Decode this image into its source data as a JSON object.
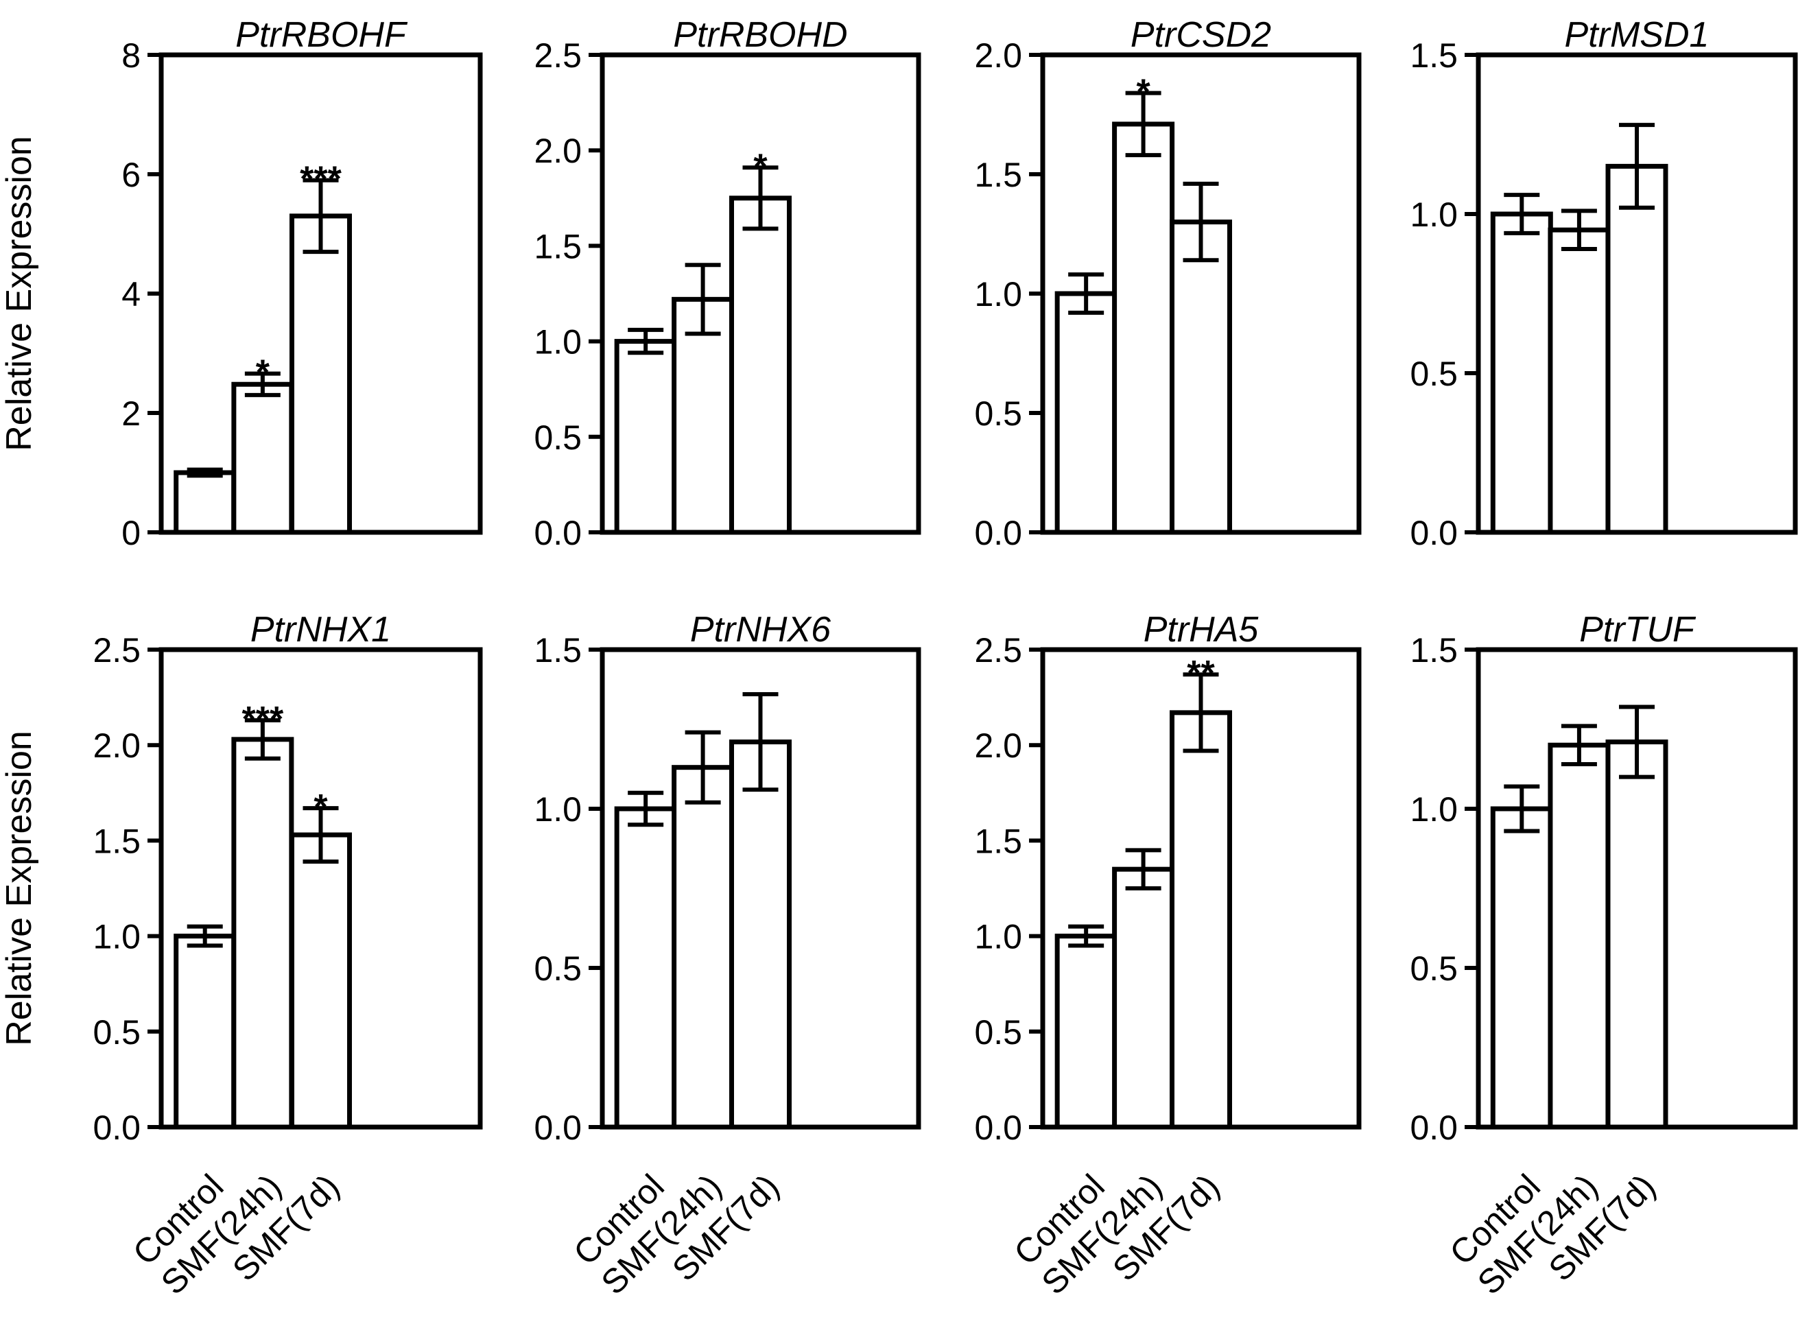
{
  "figure_colors": {
    "axis": "#000000",
    "bar_fill": "#ffffff",
    "bar_stroke": "#000000"
  },
  "chart_data": [
    {
      "type": "bar",
      "title": "PtrRBOHF",
      "ylabel": "Relative Expression",
      "ylim": [
        0,
        8
      ],
      "yticks": [
        {
          "v": 0,
          "label": "0"
        },
        {
          "v": 2,
          "label": "2"
        },
        {
          "v": 4,
          "label": "4"
        },
        {
          "v": 6,
          "label": "6"
        },
        {
          "v": 8,
          "label": "8"
        }
      ],
      "categories": [
        "Control",
        "SMF(24h)",
        "SMF(7d)"
      ],
      "values": [
        1.0,
        2.48,
        5.3
      ],
      "errors": [
        0.05,
        0.18,
        0.6
      ],
      "significance": [
        "",
        "*",
        "***"
      ]
    },
    {
      "type": "bar",
      "title": "PtrRBOHD",
      "ylabel": "",
      "ylim": [
        0,
        2.5
      ],
      "yticks": [
        {
          "v": 0,
          "label": "0.0"
        },
        {
          "v": 0.5,
          "label": "0.5"
        },
        {
          "v": 1,
          "label": "1.0"
        },
        {
          "v": 1.5,
          "label": "1.5"
        },
        {
          "v": 2,
          "label": "2.0"
        },
        {
          "v": 2.5,
          "label": "2.5"
        }
      ],
      "categories": [
        "Control",
        "SMF(24h)",
        "SMF(7d)"
      ],
      "values": [
        1.0,
        1.22,
        1.75
      ],
      "errors": [
        0.06,
        0.18,
        0.16
      ],
      "significance": [
        "",
        "",
        "*"
      ]
    },
    {
      "type": "bar",
      "title": "PtrCSD2",
      "ylabel": "",
      "ylim": [
        0,
        2.0
      ],
      "yticks": [
        {
          "v": 0,
          "label": "0.0"
        },
        {
          "v": 0.5,
          "label": "0.5"
        },
        {
          "v": 1,
          "label": "1.0"
        },
        {
          "v": 1.5,
          "label": "1.5"
        },
        {
          "v": 2,
          "label": "2.0"
        }
      ],
      "categories": [
        "Control",
        "SMF(24h)",
        "SMF(7d)"
      ],
      "values": [
        1.0,
        1.71,
        1.3
      ],
      "errors": [
        0.08,
        0.13,
        0.16
      ],
      "significance": [
        "",
        "*",
        ""
      ]
    },
    {
      "type": "bar",
      "title": "PtrMSD1",
      "ylabel": "",
      "ylim": [
        0,
        1.5
      ],
      "yticks": [
        {
          "v": 0,
          "label": "0.0"
        },
        {
          "v": 0.5,
          "label": "0.5"
        },
        {
          "v": 1,
          "label": "1.0"
        },
        {
          "v": 1.5,
          "label": "1.5"
        }
      ],
      "categories": [
        "Control",
        "SMF(24h)",
        "SMF(7d)"
      ],
      "values": [
        1.0,
        0.95,
        1.15
      ],
      "errors": [
        0.06,
        0.06,
        0.13
      ],
      "significance": [
        "",
        "",
        ""
      ]
    },
    {
      "type": "bar",
      "title": "PtrNHX1",
      "ylabel": "Relative Expression",
      "ylim": [
        0,
        2.5
      ],
      "yticks": [
        {
          "v": 0,
          "label": "0.0"
        },
        {
          "v": 0.5,
          "label": "0.5"
        },
        {
          "v": 1,
          "label": "1.0"
        },
        {
          "v": 1.5,
          "label": "1.5"
        },
        {
          "v": 2,
          "label": "2.0"
        },
        {
          "v": 2.5,
          "label": "2.5"
        }
      ],
      "categories": [
        "Control",
        "SMF(24h)",
        "SMF(7d)"
      ],
      "values": [
        1.0,
        2.03,
        1.53
      ],
      "errors": [
        0.05,
        0.1,
        0.14
      ],
      "significance": [
        "",
        "***",
        "*"
      ]
    },
    {
      "type": "bar",
      "title": "PtrNHX6",
      "ylabel": "",
      "ylim": [
        0,
        1.5
      ],
      "yticks": [
        {
          "v": 0,
          "label": "0.0"
        },
        {
          "v": 0.5,
          "label": "0.5"
        },
        {
          "v": 1,
          "label": "1.0"
        },
        {
          "v": 1.5,
          "label": "1.5"
        }
      ],
      "categories": [
        "Control",
        "SMF(24h)",
        "SMF(7d)"
      ],
      "values": [
        1.0,
        1.13,
        1.21
      ],
      "errors": [
        0.05,
        0.11,
        0.15
      ],
      "significance": [
        "",
        "",
        ""
      ]
    },
    {
      "type": "bar",
      "title": "PtrHA5",
      "ylabel": "",
      "ylim": [
        0,
        2.5
      ],
      "yticks": [
        {
          "v": 0,
          "label": "0.0"
        },
        {
          "v": 0.5,
          "label": "0.5"
        },
        {
          "v": 1,
          "label": "1.0"
        },
        {
          "v": 1.5,
          "label": "1.5"
        },
        {
          "v": 2,
          "label": "2.0"
        },
        {
          "v": 2.5,
          "label": "2.5"
        }
      ],
      "categories": [
        "Control",
        "SMF(24h)",
        "SMF(7d)"
      ],
      "values": [
        1.0,
        1.35,
        2.17
      ],
      "errors": [
        0.05,
        0.1,
        0.2
      ],
      "significance": [
        "",
        "",
        "**"
      ]
    },
    {
      "type": "bar",
      "title": "PtrTUF",
      "ylabel": "",
      "ylim": [
        0,
        1.5
      ],
      "yticks": [
        {
          "v": 0,
          "label": "0.0"
        },
        {
          "v": 0.5,
          "label": "0.5"
        },
        {
          "v": 1,
          "label": "1.0"
        },
        {
          "v": 1.5,
          "label": "1.5"
        }
      ],
      "categories": [
        "Control",
        "SMF(24h)",
        "SMF(7d)"
      ],
      "values": [
        1.0,
        1.2,
        1.21
      ],
      "errors": [
        0.07,
        0.06,
        0.11
      ],
      "significance": [
        "",
        "",
        ""
      ]
    }
  ]
}
